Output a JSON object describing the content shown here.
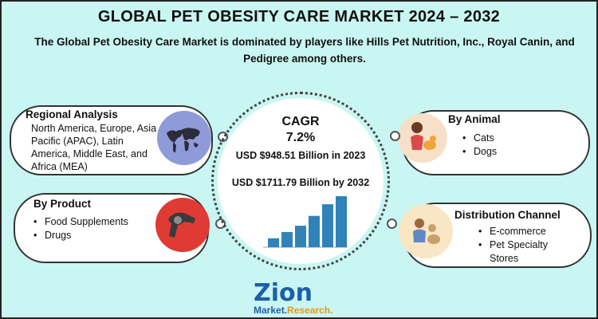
{
  "title": "GLOBAL PET OBESITY CARE MARKET 2024 – 2032",
  "subtitle": "The Global Pet Obesity Care Market is dominated by players like Hills Pet Nutrition, Inc., Royal Canin, and Pedigree among others.",
  "regional": {
    "title": "Regional Analysis",
    "text": "North America, Europe, Asia Pacific (APAC), Latin America, Middle East, and Africa (MEA)",
    "icon": "world-map-icon"
  },
  "product": {
    "title": "By Product",
    "items": [
      "Food Supplements",
      "Drugs"
    ],
    "icon": "hair-dryer-icon"
  },
  "animal": {
    "title": "By Animal",
    "items": [
      "Cats",
      "Dogs"
    ],
    "icon": "pet-owner-icon"
  },
  "distribution": {
    "title": "Distribution Channel",
    "items": [
      "E-commerce",
      "Pet Specialty Stores"
    ],
    "icon": "pet-family-icon"
  },
  "center": {
    "cagr_label": "CAGR",
    "cagr_value": "7.2%",
    "value_2023": "USD $948.51 Billion in 2023",
    "value_2032": "USD $1711.79 Billion by 2032"
  },
  "chart_data": {
    "type": "bar",
    "values": [
      10,
      17,
      24,
      35,
      48,
      57
    ],
    "color": "#2f83b8"
  },
  "logo": {
    "word": "Zion",
    "sub_a": "Market.",
    "sub_b": "Research."
  },
  "colors": {
    "background": "#c9f6f2",
    "regional_circle": "#8f9bd8",
    "product_circle": "#e03a34",
    "animal_circle": "#f6e0c8",
    "distribution_circle": "#f9e6c4",
    "bars": "#2f83b8"
  }
}
